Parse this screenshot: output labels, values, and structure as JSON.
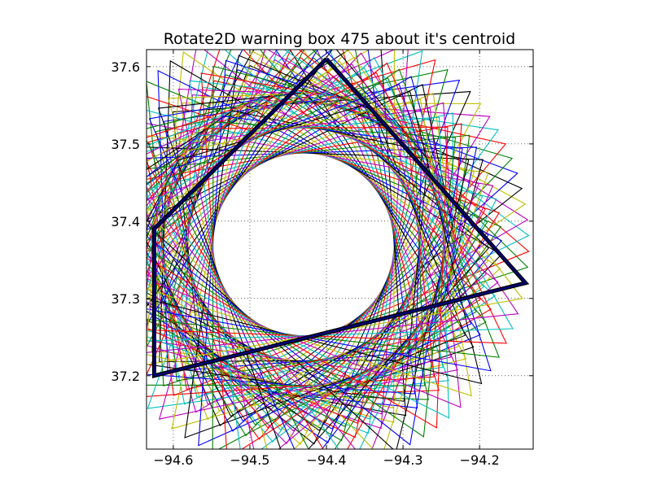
{
  "chart_data": {
    "type": "line",
    "title": "Rotate2D warning box 475 about it's centroid",
    "xlabel": "",
    "ylabel": "",
    "xlim": [
      -94.635,
      -94.13
    ],
    "ylim": [
      37.105,
      37.622
    ],
    "xticks": [
      -94.6,
      -94.5,
      -94.4,
      -94.3,
      -94.2
    ],
    "xtick_labels": [
      "−94.6",
      "−94.5",
      "−94.4",
      "−94.3",
      "−94.2"
    ],
    "yticks": [
      37.2,
      37.3,
      37.4,
      37.5,
      37.6
    ],
    "ytick_labels": [
      "37.2",
      "37.3",
      "37.4",
      "37.5",
      "37.6"
    ],
    "grid": true,
    "legend": "none",
    "original_polygon": {
      "x": [
        -94.4,
        -94.625,
        -94.625,
        -94.14,
        -94.4
      ],
      "y": [
        37.61,
        37.39,
        37.2,
        37.32,
        37.61
      ]
    },
    "rotation": {
      "center": [
        -94.43,
        37.37
      ],
      "step_degrees": 4,
      "count": 90
    },
    "colors": {
      "original": "#000080",
      "cycle": [
        "#0000ff",
        "#008000",
        "#ff0000",
        "#00bfbf",
        "#bf00bf",
        "#bfbf00",
        "#000000"
      ]
    }
  }
}
